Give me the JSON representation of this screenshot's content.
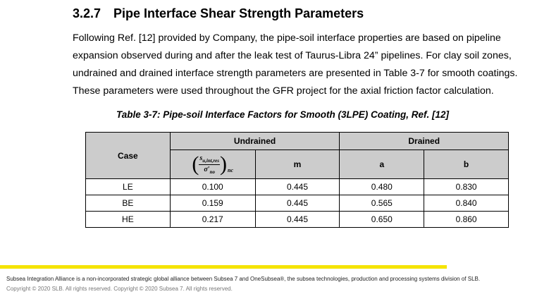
{
  "section": {
    "number": "3.2.7",
    "title": "Pipe Interface Shear Strength Parameters"
  },
  "paragraph_lines": [
    "Following Ref. [12] provided by Company, the pipe-soil interface properties are based on pipeline",
    "expansion observed during and after the leak test of Taurus-Libra 24” pipelines. For clay soil zones,",
    "undrained and drained interface strength parameters are presented in Table 3-7 for smooth coatings.",
    "These parameters were used throughout the GFR project for the axial friction factor calculation."
  ],
  "table": {
    "caption": "Table 3-7: Pipe-soil Interface Factors for Smooth (3LPE) Coating, Ref. [12]",
    "case_header": "Case",
    "group_headers": [
      "Undrained",
      "Drained"
    ],
    "ratio_header": {
      "numerator": "s",
      "numerator_sub": "u,int,res",
      "denominator": "σ′",
      "denominator_sub": "no",
      "outer_sub": "nc"
    },
    "sub_headers": [
      "m",
      "a",
      "b"
    ],
    "rows": [
      {
        "case": "LE",
        "ratio": "0.100",
        "m": "0.445",
        "a": "0.480",
        "b": "0.830"
      },
      {
        "case": "BE",
        "ratio": "0.159",
        "m": "0.445",
        "a": "0.565",
        "b": "0.840"
      },
      {
        "case": "HE",
        "ratio": "0.217",
        "m": "0.445",
        "a": "0.650",
        "b": "0.860"
      }
    ]
  },
  "footer": {
    "line1": "Subsea Integration Alliance is a non-incorporated strategic global alliance between Subsea 7 and OneSubsea®, the subsea technologies, production and processing systems division of SLB.",
    "line2": "Copyright © 2020 SLB. All rights reserved. Copyright © 2020 Subsea 7. All rights reserved."
  },
  "colors": {
    "header_fill": "#cccccc",
    "footer_bar": "#f5e400"
  }
}
